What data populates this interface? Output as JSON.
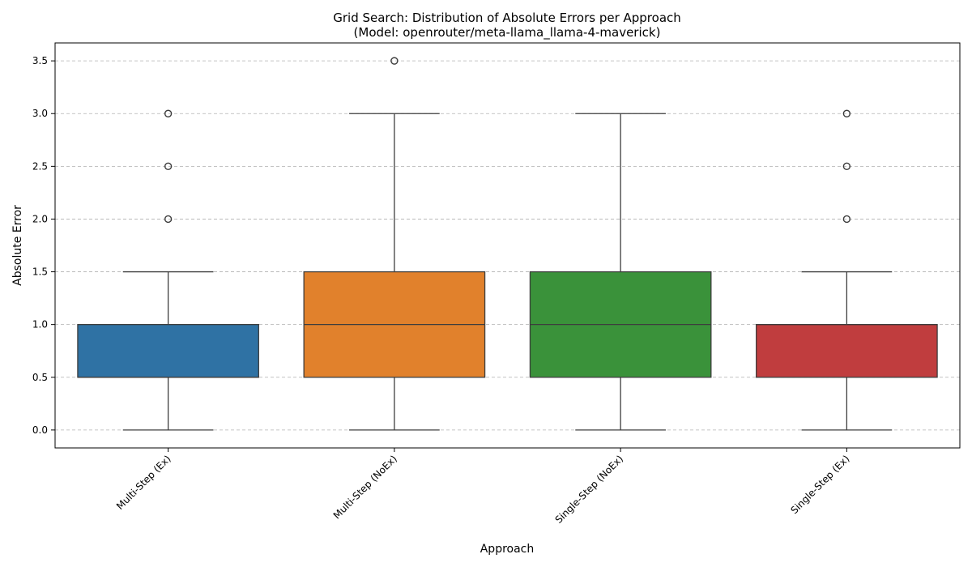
{
  "chart_data": {
    "type": "box",
    "title": "Grid Search: Distribution of Absolute Errors per Approach",
    "subtitle": "(Model: openrouter/meta-llama_llama-4-maverick)",
    "xlabel": "Approach",
    "ylabel": "Absolute Error",
    "ylim": [
      -0.17,
      3.67
    ],
    "yticks": [
      0.0,
      0.5,
      1.0,
      1.5,
      2.0,
      2.5,
      3.0,
      3.5
    ],
    "ytick_labels": [
      "0.0",
      "0.5",
      "1.0",
      "1.5",
      "2.0",
      "2.5",
      "3.0",
      "3.5"
    ],
    "grid": "horizontal dashed",
    "categories": [
      "Multi-Step (Ex)",
      "Multi-Step (NoEx)",
      "Single-Step (NoEx)",
      "Single-Step (Ex)"
    ],
    "series": [
      {
        "category": "Multi-Step (Ex)",
        "color": "#2f72a4",
        "whisker_low": 0.0,
        "q1": 0.5,
        "median": 0.5,
        "q3": 1.0,
        "whisker_high": 1.5,
        "outliers": [
          2.0,
          2.5,
          3.0
        ]
      },
      {
        "category": "Multi-Step (NoEx)",
        "color": "#e1812c",
        "whisker_low": 0.0,
        "q1": 0.5,
        "median": 1.0,
        "q3": 1.5,
        "whisker_high": 3.0,
        "outliers": [
          3.5
        ]
      },
      {
        "category": "Single-Step (NoEx)",
        "color": "#3a923a",
        "whisker_low": 0.0,
        "q1": 0.5,
        "median": 1.0,
        "q3": 1.5,
        "whisker_high": 3.0,
        "outliers": []
      },
      {
        "category": "Single-Step (Ex)",
        "color": "#c03d3e",
        "whisker_low": 0.0,
        "q1": 0.5,
        "median": 1.0,
        "q3": 1.0,
        "whisker_high": 1.5,
        "outliers": [
          2.0,
          2.5,
          3.0
        ]
      }
    ]
  }
}
